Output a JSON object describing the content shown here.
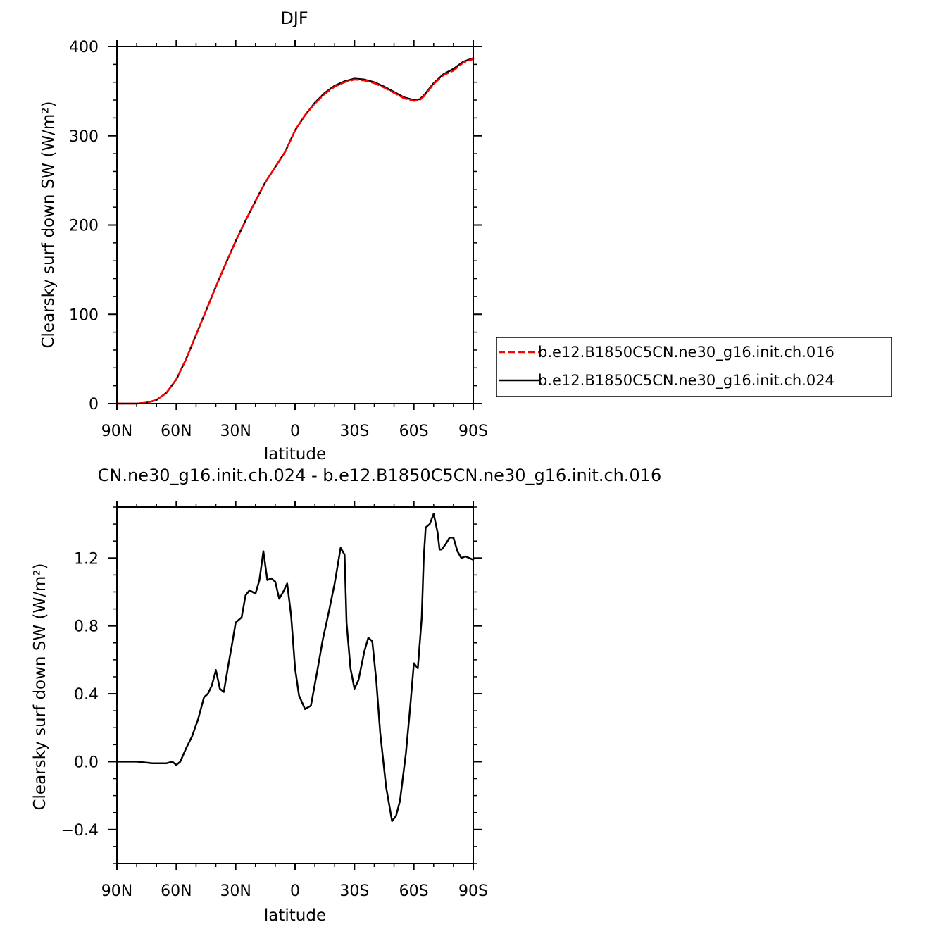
{
  "chart_data": [
    {
      "type": "line",
      "title": "DJF",
      "xlabel": "latitude",
      "ylabel": "Clearsky surf down SW (W/m²)",
      "xlim": [
        90,
        -90
      ],
      "ylim": [
        0,
        400
      ],
      "x_ticks": [
        {
          "value": 90,
          "label": "90N"
        },
        {
          "value": 60,
          "label": "60N"
        },
        {
          "value": 30,
          "label": "30N"
        },
        {
          "value": 0,
          "label": "0"
        },
        {
          "value": -30,
          "label": "30S"
        },
        {
          "value": -60,
          "label": "60S"
        },
        {
          "value": -90,
          "label": "90S"
        }
      ],
      "y_ticks": [
        {
          "value": 0,
          "label": "0"
        },
        {
          "value": 100,
          "label": "100"
        },
        {
          "value": 200,
          "label": "200"
        },
        {
          "value": 300,
          "label": "300"
        },
        {
          "value": 400,
          "label": "400"
        }
      ],
      "legend_position": "right",
      "x": [
        90,
        85,
        80,
        75,
        70,
        65,
        60,
        55,
        50,
        45,
        40,
        35,
        30,
        25,
        20,
        15,
        10,
        5,
        0,
        -5,
        -10,
        -15,
        -20,
        -25,
        -30,
        -35,
        -40,
        -45,
        -50,
        -55,
        -60,
        -63,
        -65,
        -70,
        -75,
        -80,
        -85,
        -90
      ],
      "series": [
        {
          "name": "b.e12.B1850C5CN.ne30_g16.init.ch.016",
          "color": "#ff0000",
          "dash": "dashed",
          "values": [
            0,
            0,
            0,
            1,
            4,
            12,
            27,
            50,
            77,
            104,
            131,
            157,
            182,
            205,
            227,
            248,
            265,
            282,
            306,
            323,
            336,
            347,
            355,
            360,
            363,
            362,
            359,
            354,
            348,
            342,
            339,
            340,
            344,
            358,
            368,
            373,
            382,
            386
          ]
        },
        {
          "name": "b.e12.B1850C5CN.ne30_g16.init.ch.024",
          "color": "#000000",
          "dash": "solid",
          "values": [
            0,
            0,
            0,
            1,
            4,
            12,
            27,
            50,
            77,
            104,
            131,
            157,
            182,
            205,
            227,
            248,
            265,
            282,
            306,
            323,
            337,
            348,
            356,
            361,
            364,
            363,
            360,
            355,
            349,
            343,
            340,
            341,
            345,
            359,
            369,
            375,
            383,
            387
          ]
        }
      ]
    },
    {
      "type": "line",
      "title": "CN.ne30_g16.init.ch.024 - b.e12.B1850C5CN.ne30_g16.init.ch.016",
      "xlabel": "latitude",
      "ylabel": "Clearsky surf down SW (W/m²)",
      "xlim": [
        90,
        -90
      ],
      "ylim": [
        -0.6,
        1.5
      ],
      "x_ticks": [
        {
          "value": 90,
          "label": "90N"
        },
        {
          "value": 60,
          "label": "60N"
        },
        {
          "value": 30,
          "label": "30N"
        },
        {
          "value": 0,
          "label": "0"
        },
        {
          "value": -30,
          "label": "30S"
        },
        {
          "value": -60,
          "label": "60S"
        },
        {
          "value": -90,
          "label": "90S"
        }
      ],
      "y_ticks": [
        {
          "value": -0.4,
          "label": "−0.4"
        },
        {
          "value": 0.0,
          "label": "0.0"
        },
        {
          "value": 0.4,
          "label": "0.4"
        },
        {
          "value": 0.8,
          "label": "0.8"
        },
        {
          "value": 1.2,
          "label": "1.2"
        }
      ],
      "x": [
        90,
        80,
        72,
        65,
        62,
        60,
        58,
        55,
        52,
        49,
        46,
        44,
        42,
        40,
        38,
        36,
        34,
        32,
        30,
        27,
        25,
        23,
        20,
        18,
        16,
        14,
        12,
        10,
        8,
        6,
        4,
        2,
        0,
        -2,
        -5,
        -8,
        -11,
        -14,
        -17,
        -20,
        -23,
        -25,
        -26,
        -28,
        -30,
        -32,
        -35,
        -37,
        -39,
        -41,
        -43,
        -46,
        -49,
        -51,
        -53,
        -56,
        -58,
        -60,
        -62,
        -64,
        -65,
        -66,
        -68,
        -70,
        -72,
        -73,
        -74,
        -76,
        -78,
        -80,
        -82,
        -84,
        -86,
        -88,
        -90
      ],
      "series": [
        {
          "name": "",
          "color": "#000000",
          "dash": "solid",
          "values": [
            0,
            0,
            -0.01,
            -0.01,
            0.0,
            -0.02,
            0.0,
            0.08,
            0.15,
            0.25,
            0.38,
            0.4,
            0.45,
            0.54,
            0.43,
            0.41,
            0.55,
            0.68,
            0.82,
            0.85,
            0.98,
            1.01,
            0.99,
            1.07,
            1.24,
            1.07,
            1.08,
            1.06,
            0.96,
            1.0,
            1.05,
            0.86,
            0.55,
            0.39,
            0.31,
            0.33,
            0.52,
            0.72,
            0.88,
            1.05,
            1.26,
            1.22,
            0.82,
            0.55,
            0.43,
            0.48,
            0.65,
            0.73,
            0.71,
            0.48,
            0.17,
            -0.15,
            -0.35,
            -0.32,
            -0.23,
            0.05,
            0.3,
            0.58,
            0.55,
            0.85,
            1.2,
            1.38,
            1.4,
            1.46,
            1.35,
            1.25,
            1.25,
            1.28,
            1.32,
            1.32,
            1.24,
            1.2,
            1.21,
            1.2,
            1.19
          ]
        }
      ]
    }
  ]
}
